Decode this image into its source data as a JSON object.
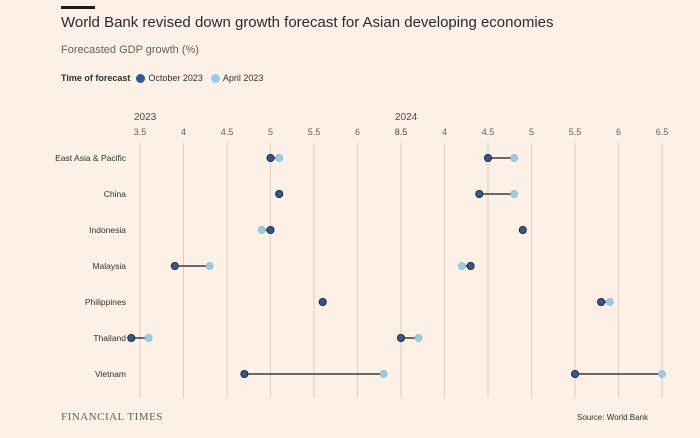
{
  "header": {
    "title": "World Bank revised down growth forecast for Asian developing economies",
    "subtitle": "Forecasted GDP growth (%)"
  },
  "legend": {
    "title": "Time of forecast",
    "items": [
      {
        "label": "October 2023",
        "color": "#2e5a8e"
      },
      {
        "label": "April 2023",
        "color": "#9ec9e3"
      }
    ]
  },
  "footer": {
    "logo": "FINANCIAL TIMES",
    "source": "Source: World Bank"
  },
  "chart_data": {
    "type": "dot-plot",
    "categories": [
      "East Asia & Pacific",
      "China",
      "Indonesia",
      "Malaysia",
      "Philippines",
      "Thailand",
      "Vietnam"
    ],
    "panels": [
      {
        "label": "2023",
        "ticks": [
          "3.5",
          "4",
          "4.5",
          "5",
          "5.5",
          "6",
          "6.5"
        ],
        "xlim": [
          3.5,
          6.5
        ],
        "series": [
          {
            "name": "October 2023",
            "values": [
              5.0,
              5.1,
              5.0,
              3.9,
              5.6,
              3.4,
              4.7
            ]
          },
          {
            "name": "April 2023",
            "values": [
              5.1,
              5.1,
              4.9,
              4.3,
              5.6,
              3.6,
              6.3
            ]
          }
        ]
      },
      {
        "label": "2024",
        "ticks": [
          "3.5",
          "4",
          "4.5",
          "5",
          "5.5",
          "6",
          "6.5"
        ],
        "xlim": [
          3.5,
          6.5
        ],
        "series": [
          {
            "name": "October 2023",
            "values": [
              4.5,
              4.4,
              4.9,
              4.3,
              5.8,
              3.5,
              5.5
            ]
          },
          {
            "name": "April 2023",
            "values": [
              4.8,
              4.8,
              4.9,
              4.2,
              5.9,
              3.7,
              6.5
            ]
          }
        ]
      }
    ],
    "colors": {
      "october": "#2e5a8e",
      "april": "#9ec9e3",
      "connector": "#1a1817",
      "grid": "#d9cdc4"
    }
  }
}
